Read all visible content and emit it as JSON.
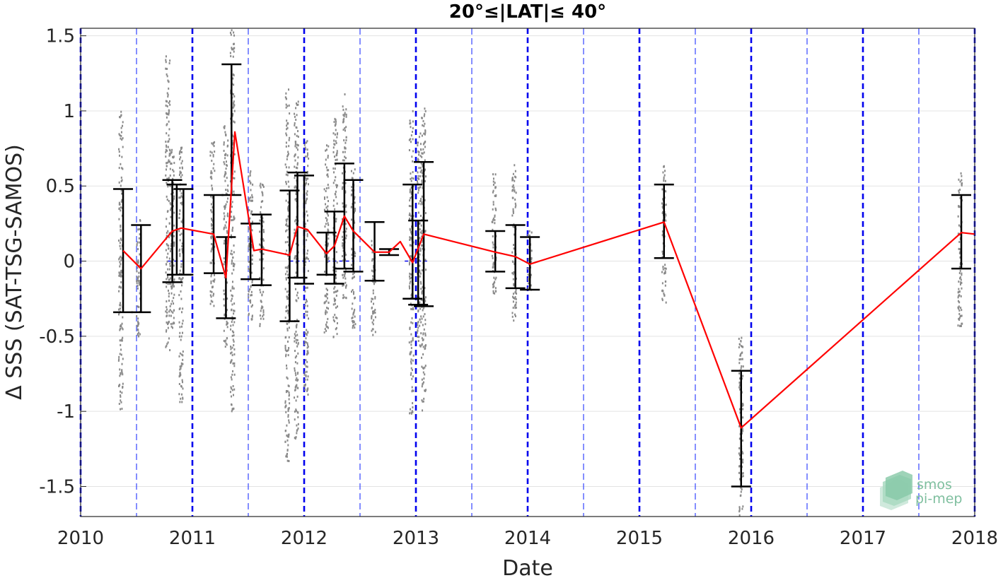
{
  "chart_data": {
    "type": "line",
    "title": "20°≤|LAT|≤ 40°",
    "xlabel": "Date",
    "ylabel": "Δ SSS (SAT-TSG-SAMOS)",
    "xlim": [
      2010,
      2018
    ],
    "ylim": [
      -1.7,
      1.55
    ],
    "x_ticks": [
      "2010",
      "2011",
      "2012",
      "2013",
      "2014",
      "2015",
      "2016",
      "2017",
      "2018"
    ],
    "y_ticks": [
      "1.5",
      "1",
      "0.5",
      "0",
      "-0.5",
      "-1",
      "-1.5"
    ],
    "grid": "horizontal",
    "year_boundaries": [
      2010,
      2011,
      2012,
      2013,
      2014,
      2015,
      2016,
      2017,
      2018
    ],
    "half_year_lines": [
      2010.5,
      2011.5,
      2012.5,
      2013.5,
      2014.5,
      2015.5,
      2016.5,
      2017.5
    ],
    "mean_series": {
      "color": "#ff0000",
      "x": [
        2010.38,
        2010.54,
        2010.82,
        2010.9,
        2011.19,
        2011.3,
        2011.38,
        2011.55,
        2011.62,
        2011.87,
        2011.94,
        2012.03,
        2012.2,
        2012.27,
        2012.36,
        2012.44,
        2012.63,
        2012.76,
        2012.86,
        2012.97,
        2013.07,
        2013.71,
        2013.89,
        2014.02,
        2015.22,
        2015.91,
        2017.88,
        2018.0
      ],
      "y": [
        0.07,
        -0.05,
        0.2,
        0.22,
        0.18,
        -0.11,
        0.86,
        0.07,
        0.08,
        0.04,
        0.23,
        0.21,
        0.05,
        0.1,
        0.3,
        0.2,
        0.06,
        0.06,
        0.13,
        -0.01,
        0.18,
        0.06,
        0.03,
        -0.02,
        0.26,
        -1.11,
        0.19,
        0.18
      ]
    },
    "error_bars": [
      {
        "x": 2010.38,
        "low": -0.34,
        "high": 0.48
      },
      {
        "x": 2010.54,
        "low": -0.34,
        "high": 0.24
      },
      {
        "x": 2010.82,
        "low": -0.14,
        "high": 0.54
      },
      {
        "x": 2010.86,
        "low": -0.09,
        "high": 0.51
      },
      {
        "x": 2010.92,
        "low": -0.09,
        "high": 0.48
      },
      {
        "x": 2011.19,
        "low": -0.08,
        "high": 0.44
      },
      {
        "x": 2011.3,
        "low": -0.38,
        "high": 0.16
      },
      {
        "x": 2011.35,
        "low": 0.44,
        "high": 1.31
      },
      {
        "x": 2011.52,
        "low": -0.12,
        "high": 0.25
      },
      {
        "x": 2011.62,
        "low": -0.16,
        "high": 0.31
      },
      {
        "x": 2011.87,
        "low": -0.4,
        "high": 0.47
      },
      {
        "x": 2011.94,
        "low": -0.11,
        "high": 0.59
      },
      {
        "x": 2012.0,
        "low": -0.15,
        "high": 0.57
      },
      {
        "x": 2012.2,
        "low": -0.09,
        "high": 0.19
      },
      {
        "x": 2012.27,
        "low": -0.15,
        "high": 0.33
      },
      {
        "x": 2012.36,
        "low": -0.05,
        "high": 0.65
      },
      {
        "x": 2012.44,
        "low": -0.07,
        "high": 0.54
      },
      {
        "x": 2012.63,
        "low": -0.13,
        "high": 0.26
      },
      {
        "x": 2012.76,
        "low": 0.04,
        "high": 0.08
      },
      {
        "x": 2012.97,
        "low": -0.25,
        "high": 0.51
      },
      {
        "x": 2013.02,
        "low": -0.29,
        "high": 0.27
      },
      {
        "x": 2013.07,
        "low": -0.3,
        "high": 0.66
      },
      {
        "x": 2013.71,
        "low": -0.07,
        "high": 0.2
      },
      {
        "x": 2013.89,
        "low": -0.18,
        "high": 0.24
      },
      {
        "x": 2014.02,
        "low": -0.19,
        "high": 0.16
      },
      {
        "x": 2015.22,
        "low": 0.02,
        "high": 0.51
      },
      {
        "x": 2015.91,
        "low": -1.5,
        "high": -0.73
      },
      {
        "x": 2017.88,
        "low": -0.05,
        "high": 0.44
      }
    ],
    "scatter_spread": [
      {
        "x": 2010.36,
        "low": -1.0,
        "high": 1.05
      },
      {
        "x": 2010.52,
        "low": -0.5,
        "high": 0.3
      },
      {
        "x": 2010.78,
        "low": -0.6,
        "high": 1.38
      },
      {
        "x": 2010.82,
        "low": -0.45,
        "high": 0.75
      },
      {
        "x": 2010.9,
        "low": -0.95,
        "high": 0.78
      },
      {
        "x": 2011.18,
        "low": -0.3,
        "high": 0.8
      },
      {
        "x": 2011.3,
        "low": -0.6,
        "high": 0.9
      },
      {
        "x": 2011.36,
        "low": -1.0,
        "high": 1.55
      },
      {
        "x": 2011.52,
        "low": -0.4,
        "high": 0.6
      },
      {
        "x": 2011.62,
        "low": -0.45,
        "high": 0.55
      },
      {
        "x": 2011.85,
        "low": -1.35,
        "high": 1.17
      },
      {
        "x": 2011.93,
        "low": -1.2,
        "high": 1.1
      },
      {
        "x": 2012.02,
        "low": -0.9,
        "high": 0.8
      },
      {
        "x": 2012.2,
        "low": -0.5,
        "high": 0.78
      },
      {
        "x": 2012.28,
        "low": -0.53,
        "high": 0.95
      },
      {
        "x": 2012.36,
        "low": -0.25,
        "high": 1.13
      },
      {
        "x": 2012.44,
        "low": -0.45,
        "high": 0.62
      },
      {
        "x": 2012.62,
        "low": -0.5,
        "high": 0.15
      },
      {
        "x": 2012.96,
        "low": -1.02,
        "high": 1.0
      },
      {
        "x": 2013.03,
        "low": -0.6,
        "high": 0.85
      },
      {
        "x": 2013.07,
        "low": -1.0,
        "high": 1.02
      },
      {
        "x": 2013.7,
        "low": -0.22,
        "high": 0.58
      },
      {
        "x": 2013.88,
        "low": -0.4,
        "high": 0.65
      },
      {
        "x": 2014.02,
        "low": -0.2,
        "high": 0.2
      },
      {
        "x": 2015.22,
        "low": -0.3,
        "high": 0.64
      },
      {
        "x": 2015.91,
        "low": -1.7,
        "high": -0.5
      },
      {
        "x": 2017.87,
        "low": -0.5,
        "high": 0.6
      }
    ]
  },
  "logo": {
    "line1": "smos",
    "line2": "pi-mep"
  },
  "colors": {
    "mean_line": "#ff0000",
    "error_bar": "#000000",
    "scatter": "#8a8a8a",
    "year_line": "#0000ee",
    "half_year_line": "#3344ff",
    "grid": "#e3e3e3"
  }
}
